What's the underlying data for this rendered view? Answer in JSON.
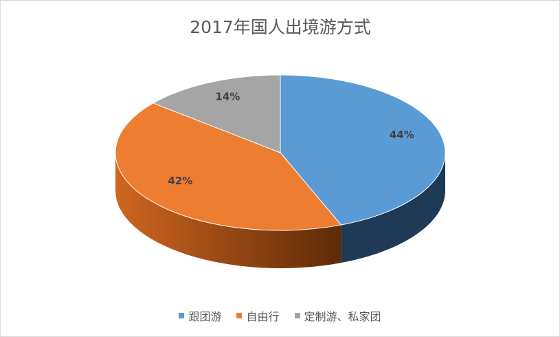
{
  "chart_data": {
    "type": "pie",
    "title": "2017年国人出境游方式",
    "categories": [
      "跟团游",
      "自由行",
      "定制游、私家团"
    ],
    "values": [
      44,
      42,
      14
    ],
    "value_labels": [
      "44%",
      "42%",
      "14%"
    ],
    "colors": [
      "#5b9bd5",
      "#ed7d31",
      "#a5a5a5"
    ],
    "legend": "bottom"
  }
}
